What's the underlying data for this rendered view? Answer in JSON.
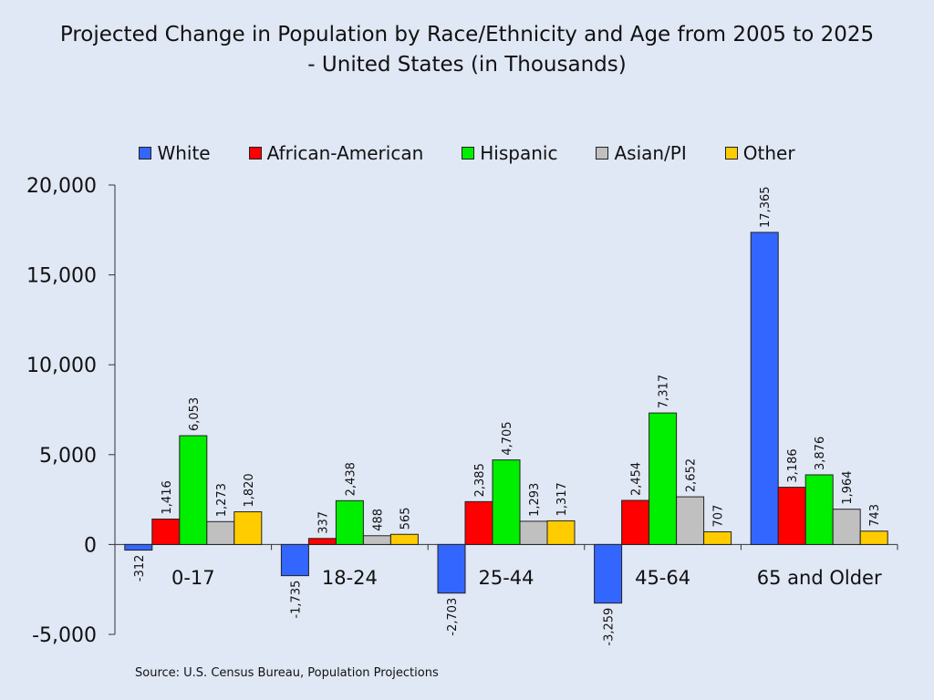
{
  "colors": {
    "background": "#E0E7F5",
    "White": "#3366FF",
    "African-American": "#FF0000",
    "Hispanic": "#00EE00",
    "Asian/PI": "#C0C0C0",
    "Other": "#FFCC00"
  },
  "chart_data": {
    "type": "bar",
    "title_line1": "Projected Change in Population by Race/Ethnicity and Age from 2005 to 2025",
    "title_line2": "- United States (in Thousands)",
    "categories": [
      "0-17",
      "18-24",
      "25-44",
      "45-64",
      "65 and Older"
    ],
    "series": [
      {
        "name": "White",
        "values": [
          -312,
          -1735,
          -2703,
          -3259,
          17365
        ]
      },
      {
        "name": "African-American",
        "values": [
          1416,
          337,
          2385,
          2454,
          3186
        ]
      },
      {
        "name": "Hispanic",
        "values": [
          6053,
          2438,
          4705,
          7317,
          3876
        ]
      },
      {
        "name": "Asian/PI",
        "values": [
          1273,
          488,
          1293,
          2652,
          1964
        ]
      },
      {
        "name": "Other",
        "values": [
          1820,
          565,
          1317,
          707,
          743
        ]
      }
    ],
    "ylim": [
      -5000,
      20000
    ],
    "yticks": [
      20000,
      15000,
      10000,
      5000,
      0,
      -5000
    ],
    "ytick_labels": [
      "20,000",
      "15,000",
      "10,000",
      "5,000",
      "0",
      "-5,000"
    ],
    "grid": false,
    "legend_position": "top",
    "source": "Source: U.S. Census Bureau, Population Projections"
  }
}
